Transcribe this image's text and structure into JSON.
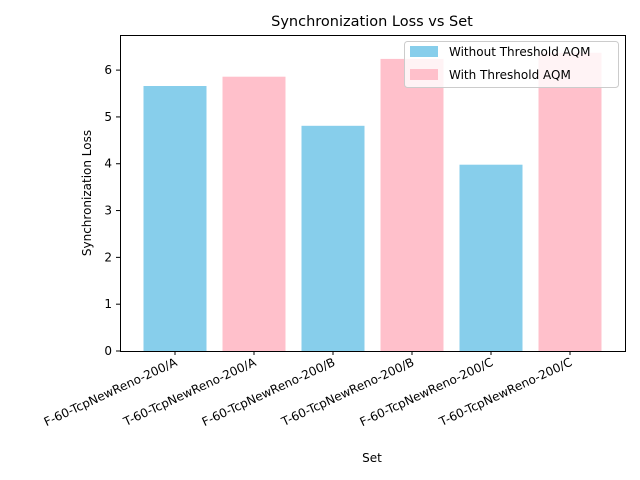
{
  "chart_data": {
    "type": "bar",
    "title": "Synchronization Loss vs Set",
    "xlabel": "Set",
    "ylabel": "Synchronization Loss",
    "ylim": [
      0,
      6.75
    ],
    "yticks": [
      0,
      1,
      2,
      3,
      4,
      5,
      6
    ],
    "categories": [
      "F-60-TcpNewReno-200/A",
      "T-60-TcpNewReno-200/A",
      "F-60-TcpNewReno-200/B",
      "T-60-TcpNewReno-200/B",
      "F-60-TcpNewReno-200/C",
      "T-60-TcpNewReno-200/C"
    ],
    "values": [
      5.66,
      5.86,
      4.81,
      6.24,
      3.98,
      6.37
    ],
    "bar_series": [
      0,
      1,
      0,
      1,
      0,
      1
    ],
    "series": [
      {
        "name": "Without Threshold AQM",
        "color": "#87CEEB"
      },
      {
        "name": "With Threshold AQM",
        "color": "#FFC0CB"
      }
    ],
    "legend_position": "top-right",
    "grid": false
  }
}
